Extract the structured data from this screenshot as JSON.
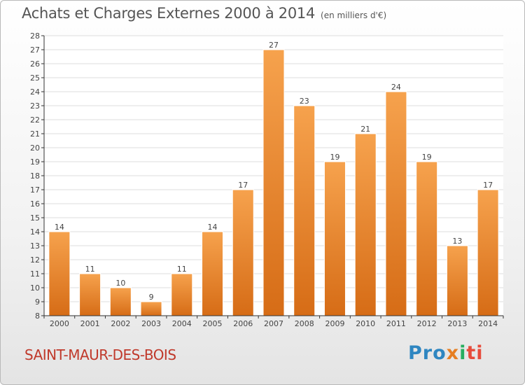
{
  "header": {
    "title": "Achats et Charges Externes 2000 à 2014",
    "subtitle": "(en milliers d'€)"
  },
  "footer": {
    "commune": "SAINT-MAUR-DES-BOIS",
    "brand_parts": [
      "Pro",
      "x",
      "i",
      "ti"
    ]
  },
  "colors": {
    "bar_top": "#f6a24d",
    "bar_bottom": "#d66c16",
    "grid": "#dddddd",
    "axis": "#333333",
    "text": "#444444"
  },
  "chart_data": {
    "type": "bar",
    "categories": [
      "2000",
      "2001",
      "2002",
      "2003",
      "2004",
      "2005",
      "2006",
      "2007",
      "2008",
      "2009",
      "2010",
      "2011",
      "2012",
      "2013",
      "2014"
    ],
    "values": [
      14,
      11,
      10,
      9,
      11,
      14,
      17,
      27,
      23,
      19,
      21,
      24,
      19,
      13,
      17
    ],
    "title": "Achats et Charges Externes 2000 à 2014",
    "subtitle": "(en milliers d'€)",
    "ylim": [
      8,
      28
    ],
    "yticks": [
      8,
      9,
      10,
      11,
      12,
      13,
      14,
      15,
      16,
      17,
      18,
      19,
      20,
      21,
      22,
      23,
      24,
      25,
      26,
      27,
      28
    ],
    "grid": true,
    "data_labels": true
  }
}
